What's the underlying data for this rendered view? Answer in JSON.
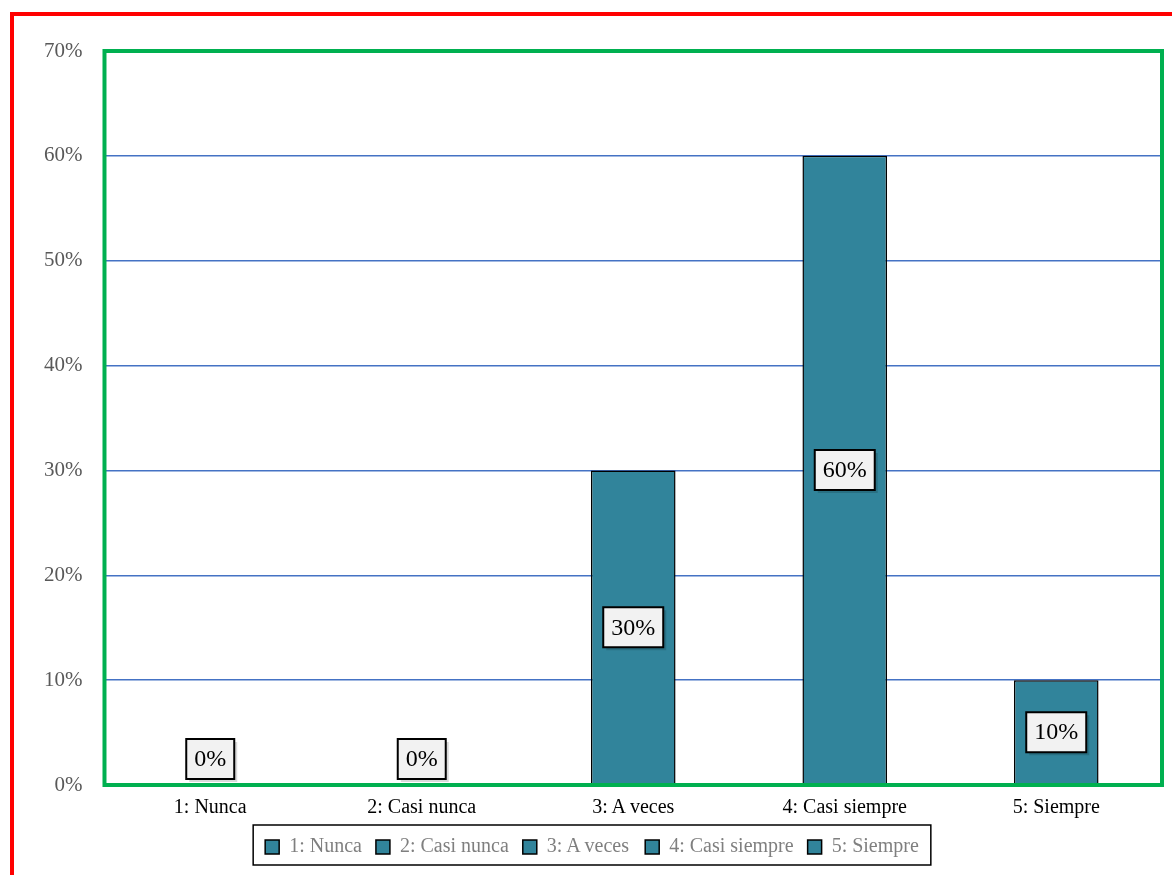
{
  "chart_data": {
    "type": "bar",
    "categories": [
      "1: Nunca",
      "2: Casi nunca",
      "3: A veces",
      "4: Casi siempre",
      "5: Siempre"
    ],
    "stacked": true,
    "series": [
      {
        "name": "1: Nunca",
        "color": "#31849b",
        "values": [
          0,
          null,
          null,
          null,
          null
        ],
        "value_labels": [
          "0%",
          null,
          null,
          null,
          null
        ]
      },
      {
        "name": "2: Casi nunca",
        "color": "#31849b",
        "values": [
          null,
          0,
          null,
          null,
          null
        ],
        "value_labels": [
          null,
          "0%",
          null,
          null,
          null
        ]
      },
      {
        "name": "3: A veces",
        "color": "#31849b",
        "values": [
          null,
          null,
          30,
          null,
          null
        ],
        "value_labels": [
          null,
          null,
          "30%",
          null,
          null
        ]
      },
      {
        "name": "4: Casi siempre",
        "color": "#31849b",
        "values": [
          null,
          null,
          null,
          60,
          null
        ],
        "value_labels": [
          null,
          null,
          null,
          "60%",
          null
        ]
      },
      {
        "name": "5: Siempre",
        "color": "#31849b",
        "values": [
          null,
          null,
          null,
          null,
          10
        ],
        "value_labels": [
          null,
          null,
          null,
          null,
          "10%"
        ]
      }
    ],
    "ylim": [
      0,
      70
    ],
    "yticks": [
      {
        "value": 0,
        "label": "0%"
      },
      {
        "value": 10,
        "label": "10%"
      },
      {
        "value": 20,
        "label": "20%"
      },
      {
        "value": 30,
        "label": "30%"
      },
      {
        "value": 40,
        "label": "40%"
      },
      {
        "value": 50,
        "label": "50%"
      },
      {
        "value": 60,
        "label": "60%"
      },
      {
        "value": 70,
        "label": "70%"
      }
    ],
    "grid": "y",
    "legend": "bottom"
  }
}
